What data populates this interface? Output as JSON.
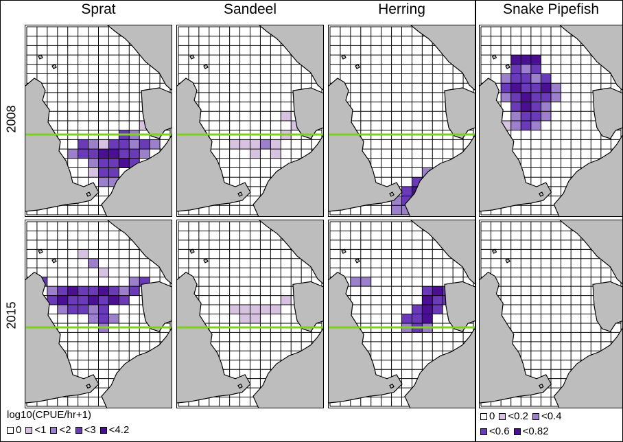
{
  "columns": [
    {
      "title": "Sprat"
    },
    {
      "title": "Sandeel"
    },
    {
      "title": "Herring"
    },
    {
      "title": "Snake Pipefish"
    }
  ],
  "rows": [
    {
      "label": "2008"
    },
    {
      "label": "2015"
    }
  ],
  "legend_main": {
    "title": "log10(CPUE/hr+1)",
    "items": [
      {
        "label": "0",
        "color": "#ffffff"
      },
      {
        "label": "<1",
        "color": "#d8c2e2"
      },
      {
        "label": "<2",
        "color": "#9c80cc"
      },
      {
        "label": "<3",
        "color": "#6a3ab8"
      },
      {
        "label": "<4.2",
        "color": "#4b0f94"
      }
    ]
  },
  "legend_pipefish": {
    "items": [
      {
        "label": "0",
        "color": "#ffffff"
      },
      {
        "label": "<0.2",
        "color": "#d8c2e2"
      },
      {
        "label": "<0.4",
        "color": "#9c80cc"
      },
      {
        "label": "<0.6",
        "color": "#6a3ab8"
      },
      {
        "label": "<0.82",
        "color": "#4b0f94"
      }
    ]
  },
  "colors": {
    "land": "#bdbdbd",
    "grid_line": "#000000",
    "reference_line": "#7fcf1f"
  }
}
